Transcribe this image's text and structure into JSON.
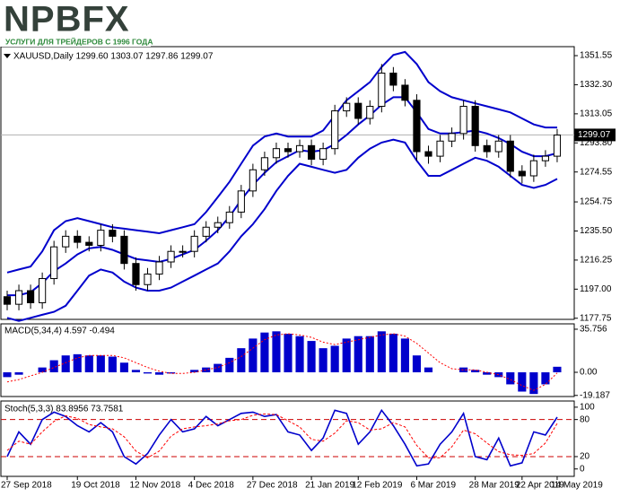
{
  "logo": {
    "brand": "NPBFX",
    "tagline": "УСЛУГИ ДЛЯ ТРЕЙДЕРОВ С 1996 ГОДА"
  },
  "chart_data": [
    {
      "type": "candlestick",
      "title": "XAUUSD,Daily 1299.60 1303.07 1297.86 1299.07",
      "categories": [
        "27 Sep 2018",
        null,
        null,
        null,
        null,
        null,
        "19 Oct 2018",
        null,
        null,
        null,
        null,
        "12 Nov 2018",
        null,
        null,
        null,
        null,
        "4 Dec 2018",
        null,
        null,
        null,
        null,
        "27 Dec 2018",
        null,
        null,
        null,
        null,
        "21 Jan 2019",
        null,
        null,
        null,
        "12 Feb 2019",
        null,
        null,
        null,
        null,
        "6 Mar 2019",
        null,
        null,
        null,
        null,
        "28 Mar 2019",
        null,
        null,
        null,
        "22 Apr 2019",
        null,
        null,
        "14 May 2019"
      ],
      "open": [
        1192,
        1187,
        1196,
        1188,
        1204,
        1225,
        1232,
        1228,
        1226,
        1236,
        1232,
        1214,
        1200,
        1207,
        1215,
        1222,
        1222,
        1232,
        1238,
        1241,
        1248,
        1262,
        1276,
        1284,
        1290,
        1288,
        1292,
        1283,
        1290,
        1315,
        1320,
        1310,
        1318,
        1340,
        1332,
        1322,
        1288,
        1285,
        1295,
        1300,
        1318,
        1292,
        1288,
        1295,
        1275,
        1272,
        1282,
        1285
      ],
      "high": [
        1196,
        1200,
        1200,
        1208,
        1229,
        1236,
        1236,
        1232,
        1240,
        1240,
        1236,
        1218,
        1211,
        1219,
        1226,
        1226,
        1236,
        1242,
        1245,
        1252,
        1266,
        1280,
        1288,
        1294,
        1294,
        1296,
        1296,
        1294,
        1319,
        1324,
        1324,
        1322,
        1346,
        1344,
        1336,
        1326,
        1292,
        1299,
        1304,
        1322,
        1322,
        1296,
        1299,
        1299,
        1279,
        1286,
        1289,
        1303
      ],
      "low": [
        1183,
        1183,
        1184,
        1184,
        1200,
        1221,
        1224,
        1222,
        1222,
        1228,
        1210,
        1196,
        1196,
        1203,
        1211,
        1218,
        1218,
        1228,
        1234,
        1237,
        1244,
        1258,
        1272,
        1280,
        1284,
        1284,
        1279,
        1279,
        1286,
        1311,
        1306,
        1306,
        1314,
        1328,
        1318,
        1282,
        1280,
        1281,
        1291,
        1296,
        1288,
        1284,
        1284,
        1271,
        1267,
        1268,
        1278,
        1281
      ],
      "close": [
        1187,
        1196,
        1188,
        1204,
        1225,
        1232,
        1228,
        1226,
        1236,
        1232,
        1214,
        1200,
        1207,
        1215,
        1222,
        1222,
        1232,
        1238,
        1241,
        1248,
        1262,
        1276,
        1284,
        1290,
        1288,
        1292,
        1283,
        1290,
        1315,
        1320,
        1310,
        1318,
        1340,
        1332,
        1322,
        1288,
        1285,
        1295,
        1300,
        1318,
        1292,
        1288,
        1295,
        1275,
        1272,
        1282,
        1285,
        1299
      ],
      "up_color": "#ffffff",
      "down_color": "#000000",
      "series": [
        {
          "color": "#0000cc",
          "values": [
            1208,
            1210,
            1212,
            1222,
            1236,
            1242,
            1244,
            1242,
            1240,
            1238,
            1237,
            1236,
            1235,
            1234,
            1236,
            1238,
            1240,
            1248,
            1258,
            1268,
            1280,
            1292,
            1298,
            1300,
            1298,
            1298,
            1298,
            1302,
            1312,
            1322,
            1328,
            1334,
            1344,
            1352,
            1354,
            1346,
            1334,
            1328,
            1324,
            1322,
            1320,
            1318,
            1316,
            1314,
            1310,
            1306,
            1304,
            1304
          ]
        },
        {
          "color": "#0000cc",
          "values": [
            1193,
            1193,
            1195,
            1201,
            1209,
            1214,
            1220,
            1224,
            1225,
            1223,
            1220,
            1217,
            1216,
            1215,
            1217,
            1220,
            1223,
            1229,
            1236,
            1245,
            1256,
            1266,
            1274,
            1281,
            1285,
            1289,
            1288,
            1289,
            1293,
            1299,
            1306,
            1312,
            1319,
            1324,
            1324,
            1314,
            1303,
            1300,
            1300,
            1301,
            1302,
            1300,
            1297,
            1293,
            1288,
            1285,
            1285,
            1287
          ]
        },
        {
          "color": "#0000cc",
          "values": [
            1178,
            1176,
            1178,
            1180,
            1182,
            1186,
            1196,
            1206,
            1210,
            1208,
            1202,
            1198,
            1196,
            1196,
            1198,
            1202,
            1206,
            1210,
            1214,
            1222,
            1232,
            1240,
            1250,
            1262,
            1272,
            1280,
            1278,
            1276,
            1274,
            1276,
            1284,
            1290,
            1294,
            1296,
            1294,
            1282,
            1272,
            1272,
            1276,
            1280,
            1284,
            1282,
            1278,
            1272,
            1266,
            1264,
            1266,
            1270
          ]
        }
      ],
      "last_price": 1299.07,
      "ylim": [
        1177,
        1357.5
      ],
      "yticks": [
        1351.55,
        {
          "value": 1332.3,
          "label": "1332.30"
        },
        1313.05,
        {
          "value": 1293.8,
          "label": "1293.80"
        },
        1274.55,
        1254.75,
        {
          "value": 1235.5,
          "label": "1235.50"
        },
        1216.25,
        {
          "value": 1197,
          "label": "1197.00"
        },
        1177.75
      ]
    },
    {
      "type": "macd",
      "title": "MACD(5,34,4) 4.597 -0.494",
      "histogram": {
        "color": "#0000cc",
        "values": [
          -4,
          -2,
          0,
          4,
          10,
          14,
          15,
          14,
          14,
          13,
          8,
          2,
          -1,
          -2,
          -1,
          0,
          2,
          4,
          7,
          12,
          20,
          28,
          33,
          34,
          32,
          30,
          26,
          20,
          22,
          28,
          30,
          30,
          34,
          32,
          28,
          14,
          4,
          0,
          0,
          4,
          2,
          -2,
          -4,
          -10,
          -16,
          -18,
          -10,
          4.597
        ]
      },
      "signal": {
        "color": "#ff0000",
        "values": [
          -8,
          -6,
          -3,
          0,
          4,
          8,
          12,
          14,
          14,
          14,
          12,
          8,
          4,
          1,
          -1,
          -1,
          0,
          2,
          4,
          8,
          13,
          20,
          27,
          31,
          32,
          31,
          29,
          25,
          23,
          25,
          27,
          29,
          31,
          32,
          30,
          24,
          16,
          8,
          3,
          2,
          2,
          0,
          -2,
          -6,
          -11,
          -15,
          -10,
          -0.494
        ]
      },
      "ylim": [
        -20.1,
        40.2
      ],
      "yticks": [
        35.756,
        {
          "value": 0,
          "label": "0.00"
        },
        -19.187
      ]
    },
    {
      "type": "stochastic",
      "title": "Stoch(5,3,3) 83.8956 73.7581",
      "series": [
        {
          "color": "#0000cc",
          "values": [
            20,
            60,
            40,
            80,
            92,
            85,
            70,
            60,
            75,
            60,
            20,
            8,
            25,
            55,
            80,
            60,
            65,
            85,
            70,
            80,
            90,
            92,
            85,
            88,
            60,
            55,
            30,
            50,
            95,
            90,
            40,
            60,
            95,
            70,
            40,
            5,
            8,
            40,
            60,
            90,
            20,
            15,
            50,
            5,
            10,
            60,
            55,
            83.8956
          ]
        },
        {
          "color": "#ff0000",
          "values": [
            30,
            45,
            40,
            60,
            77,
            86,
            82,
            72,
            68,
            65,
            52,
            29,
            18,
            29,
            53,
            65,
            68,
            70,
            73,
            78,
            80,
            87,
            89,
            88,
            78,
            68,
            48,
            45,
            58,
            78,
            75,
            63,
            65,
            75,
            68,
            38,
            18,
            18,
            36,
            63,
            57,
            42,
            28,
            23,
            22,
            25,
            42,
            73.7581
          ]
        }
      ],
      "levels": [
        80,
        20
      ],
      "level_color": "#cc0000",
      "ylim": [
        -12,
        110
      ],
      "yticks": [
        100,
        80,
        20,
        0
      ]
    }
  ]
}
